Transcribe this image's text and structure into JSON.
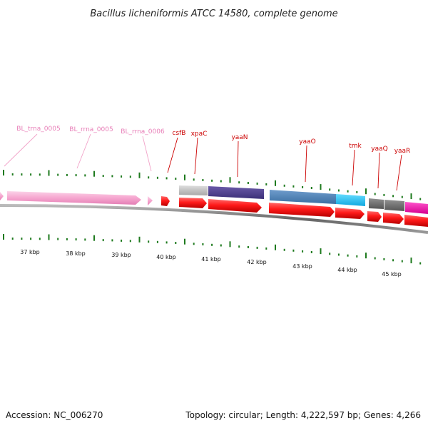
{
  "title": "Bacillus licheniformis ATCC 14580, complete genome",
  "footer": {
    "accession": "Accession: NC_006270",
    "summary": "Topology: circular; Length: 4,222,597 bp; Genes: 4,266"
  },
  "colors": {
    "gene_label": "#cc0000",
    "rna_label": "#e87fb8",
    "tick": "#1e7a1e",
    "backbone": "#777777",
    "cds": "#ee1111",
    "rna": "#f7a8cf"
  },
  "rna_labels": [
    {
      "id": "trna-0005",
      "text": "BL_trna_0005"
    },
    {
      "id": "rrna-0005",
      "text": "BL_rrna_0005"
    },
    {
      "id": "rrna-0006",
      "text": "BL_rrna_0006"
    }
  ],
  "gene_labels": [
    {
      "id": "csfb",
      "text": "csfB"
    },
    {
      "id": "xpac",
      "text": "xpaC"
    },
    {
      "id": "yaan",
      "text": "yaaN"
    },
    {
      "id": "yaao",
      "text": "yaaO"
    },
    {
      "id": "tmk",
      "text": "tmk"
    },
    {
      "id": "yaaq",
      "text": "yaaQ"
    },
    {
      "id": "yaar",
      "text": "yaaR"
    }
  ],
  "kbp_labels": [
    "37 kbp",
    "38 kbp",
    "39 kbp",
    "40 kbp",
    "41 kbp",
    "42 kbp",
    "43 kbp",
    "44 kbp",
    "45 kbp"
  ]
}
